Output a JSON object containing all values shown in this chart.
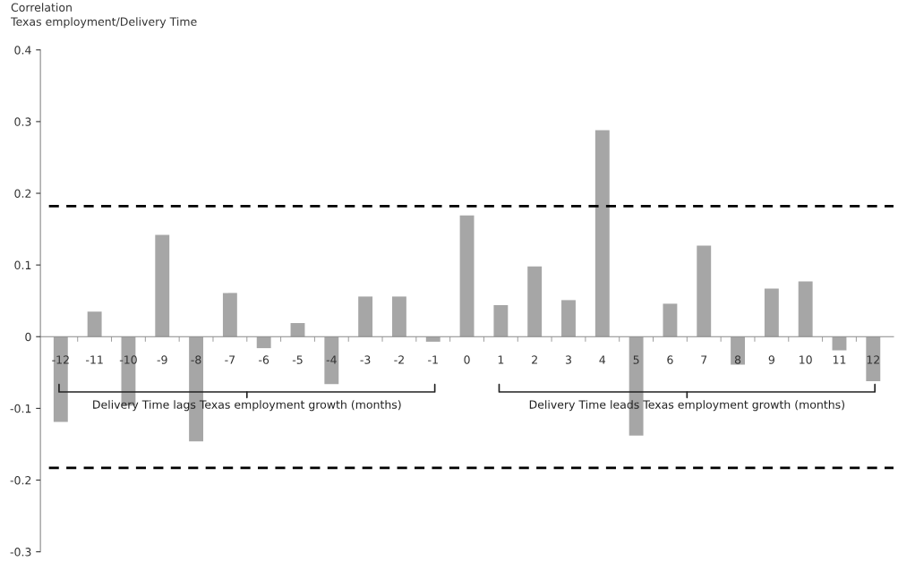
{
  "chart_data": {
    "type": "bar",
    "ylabel": "Correlation\nTexas employment/Delivery Time",
    "categories": [
      "-12",
      "-11",
      "-10",
      "-9",
      "-8",
      "-7",
      "-6",
      "-5",
      "-4",
      "-3",
      "-2",
      "-1",
      "0",
      "1",
      "2",
      "3",
      "4",
      "5",
      "6",
      "7",
      "8",
      "9",
      "10",
      "11",
      "12"
    ],
    "values": [
      -0.119,
      0.035,
      -0.096,
      0.142,
      -0.146,
      0.061,
      -0.016,
      0.019,
      -0.066,
      0.056,
      0.056,
      -0.007,
      0.169,
      0.044,
      0.098,
      0.051,
      0.288,
      -0.138,
      0.046,
      0.127,
      -0.039,
      0.067,
      0.077,
      -0.019,
      -0.062
    ],
    "color": "#a6a6a6",
    "ylim": [
      -0.3,
      0.4
    ],
    "yticks": [
      -0.3,
      -0.2,
      -0.1,
      0,
      0.1,
      0.2,
      0.3,
      0.4
    ],
    "grid": false,
    "legend": false,
    "ref_lines": [
      {
        "axis": "y",
        "value": 0.182,
        "color": "#000000",
        "line_style": "dashed"
      },
      {
        "axis": "y",
        "value": -0.183,
        "color": "#000000",
        "line_style": "dashed"
      }
    ],
    "annotations": [
      "Delivery Time lags Texas employment growth (months)",
      "Delivery Time leads Texas employment growth (months)"
    ]
  }
}
